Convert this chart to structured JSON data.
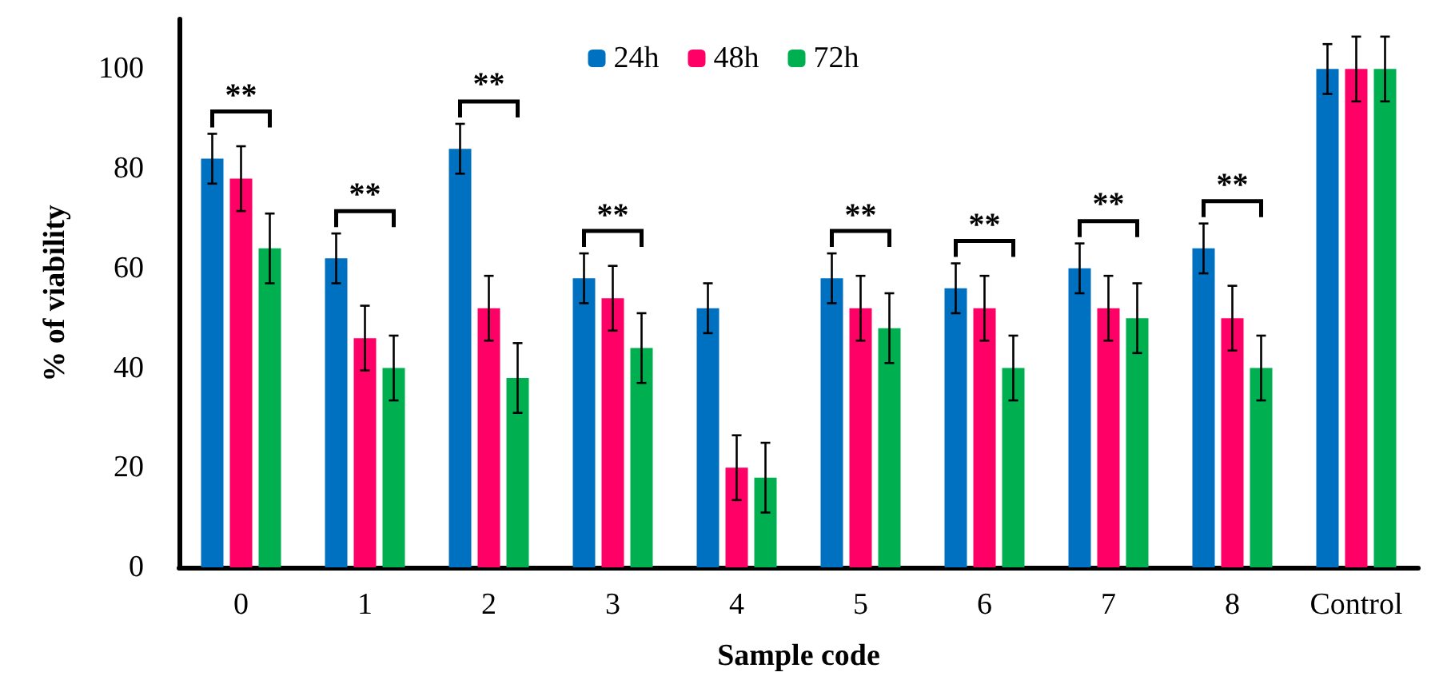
{
  "chart_data": {
    "type": "bar",
    "xlabel": "Sample code",
    "ylabel": "% of viability",
    "categories": [
      "0",
      "1",
      "2",
      "3",
      "4",
      "5",
      "6",
      "7",
      "8",
      "Control"
    ],
    "series": [
      {
        "name": "24h",
        "color": "#0070c0",
        "values": [
          82,
          62,
          84,
          58,
          52,
          58,
          56,
          60,
          64,
          100
        ],
        "errors": [
          5,
          5,
          5,
          5,
          5,
          5,
          5,
          5,
          5,
          5
        ]
      },
      {
        "name": "48h",
        "color": "#ff0066",
        "values": [
          78,
          46,
          52,
          54,
          20,
          52,
          52,
          52,
          50,
          100
        ],
        "errors": [
          6.5,
          6.5,
          6.5,
          6.5,
          6.5,
          6.5,
          6.5,
          6.5,
          6.5,
          6.5
        ]
      },
      {
        "name": "72h",
        "color": "#00b050",
        "values": [
          64,
          40,
          38,
          44,
          18,
          48,
          40,
          50,
          40,
          100
        ],
        "errors": [
          7,
          6.5,
          7,
          7,
          7,
          7,
          6.5,
          7,
          6.5,
          6.5
        ]
      }
    ],
    "ylim": [
      0,
      110
    ],
    "yticks": [
      0,
      20,
      40,
      60,
      80,
      100
    ],
    "grid": false,
    "legend": "top",
    "annotations": [
      "**",
      "**",
      "**",
      "**",
      "**",
      "**",
      "**",
      "**"
    ]
  }
}
